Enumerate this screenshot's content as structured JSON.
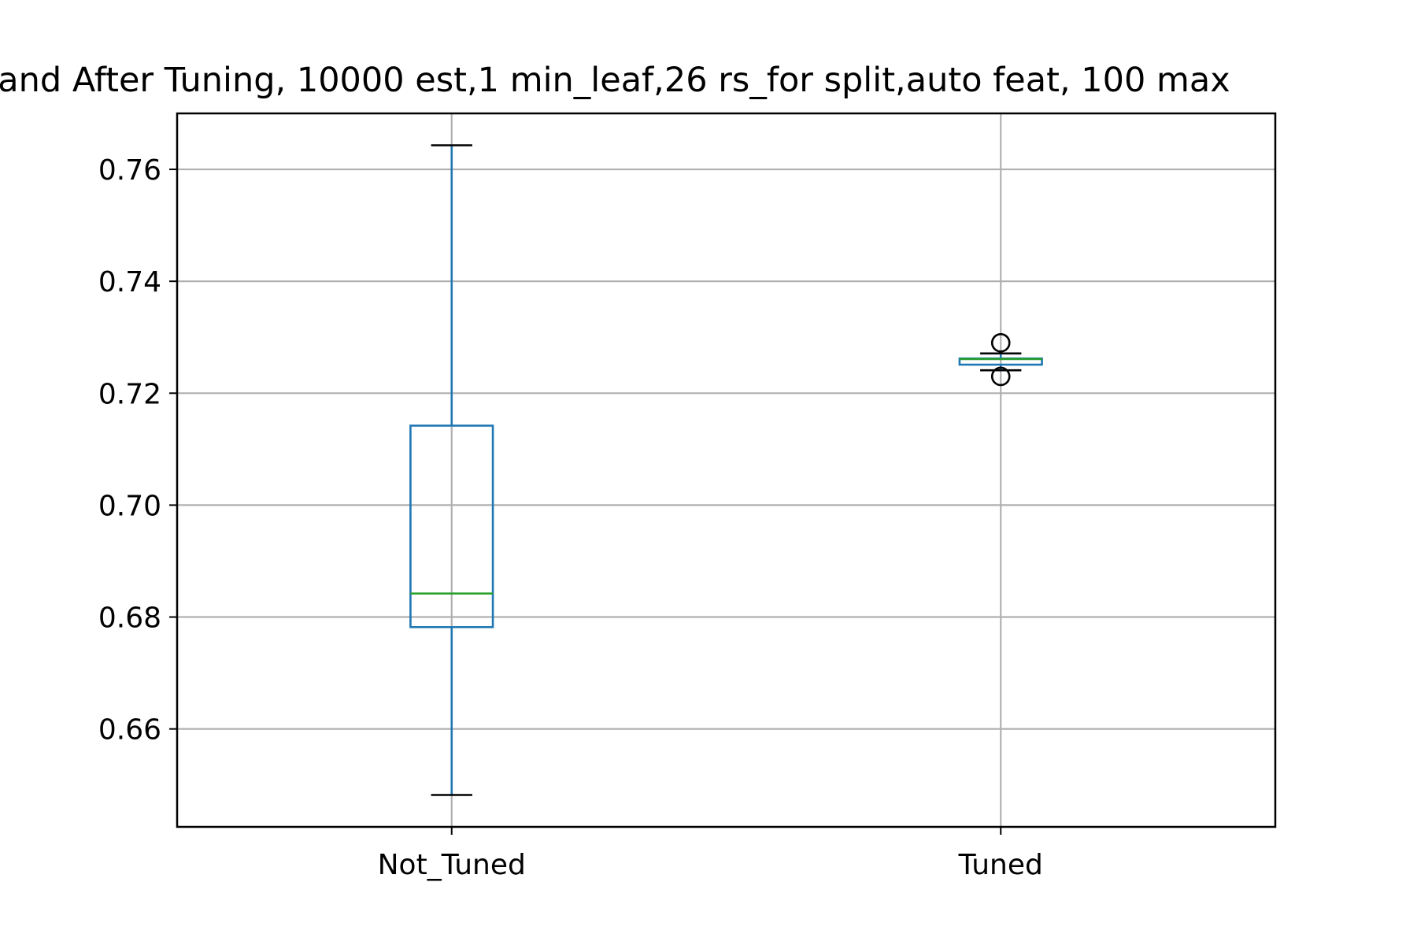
{
  "chart_data": {
    "type": "box",
    "title": "and After Tuning, 10000 est,1 min_leaf,26 rs_for split,auto feat, 100 max",
    "xlabel": "",
    "ylabel": "",
    "categories": [
      "Not_Tuned",
      "Tuned"
    ],
    "ylim": [
      0.6425,
      0.77
    ],
    "yticks": [
      0.66,
      0.68,
      0.7,
      0.72,
      0.74,
      0.76
    ],
    "ytick_labels": [
      "0.66",
      "0.68",
      "0.70",
      "0.72",
      "0.74",
      "0.76"
    ],
    "grid": true,
    "boxes": [
      {
        "category": "Not_Tuned",
        "whisker_low": 0.6482,
        "q1": 0.6782,
        "median": 0.6842,
        "q3": 0.7142,
        "whisker_high": 0.7643,
        "outliers": []
      },
      {
        "category": "Tuned",
        "whisker_low": 0.7241,
        "q1": 0.7251,
        "median": 0.7261,
        "q3": 0.7262,
        "whisker_high": 0.7271,
        "outliers": [
          0.723,
          0.729
        ]
      }
    ],
    "colors": {
      "box": "#1f77b4",
      "median": "#2ca02c",
      "cap": "#000000",
      "grid": "#b0b0b0",
      "axes": "#000000"
    }
  }
}
